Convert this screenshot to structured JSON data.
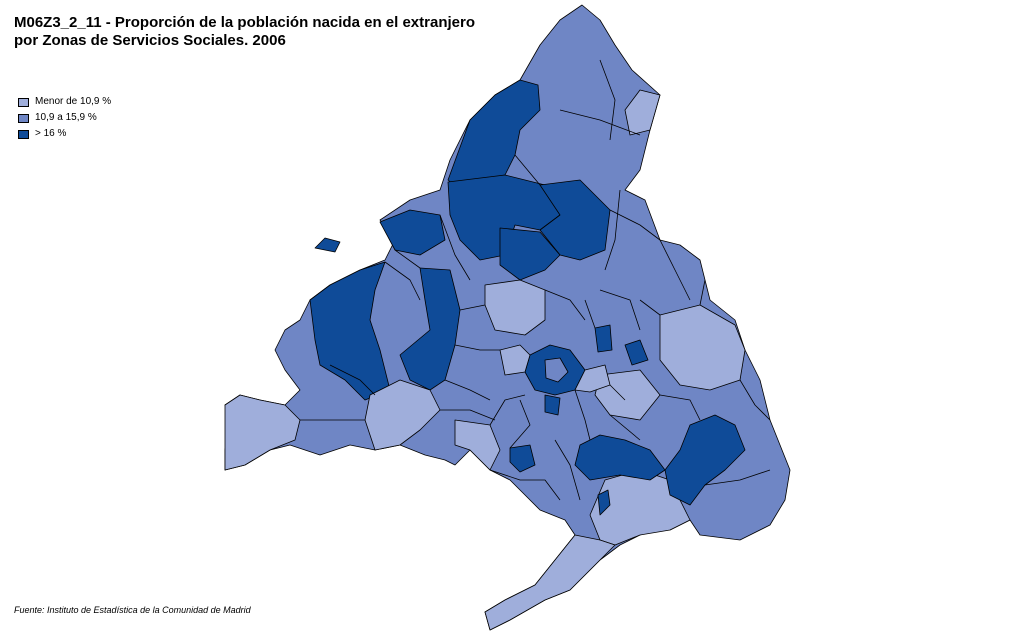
{
  "title": {
    "line1": "M06Z3_2_11 - Proporción de la población nacida en el extranjero",
    "line2": "por Zonas de Servicios Sociales. 2006"
  },
  "legend": {
    "items": [
      {
        "label": "Menor de 10,9 %",
        "color": "#9faedb"
      },
      {
        "label": "10,9 a 15,9 %",
        "color": "#6f86c5"
      },
      {
        "label": "> 16 %",
        "color": "#0f4b98"
      }
    ]
  },
  "source": "Fuente: Instituto de Estadística de la Comunidad de Madrid",
  "colors": {
    "low": "#9faedb",
    "mid": "#6f86c5",
    "high": "#0f4b98",
    "outline": "#000000",
    "background": "#ffffff"
  }
}
